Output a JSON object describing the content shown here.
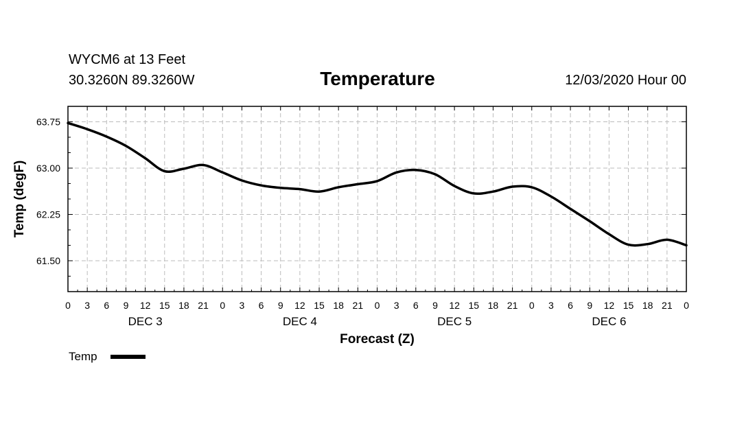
{
  "header": {
    "station": "WYCM6 at 13 Feet",
    "coordinates": "30.3260N 89.3260W",
    "title": "Temperature",
    "datetime": "12/03/2020 Hour 00"
  },
  "colors": {
    "line": "#000000",
    "grid": "#bbbbbb",
    "frame": "#000000"
  },
  "chart_data": {
    "type": "line",
    "title": "Temperature",
    "xlabel": "Forecast (Z)",
    "ylabel": "Temp (degF)",
    "xlim": [
      0,
      96
    ],
    "ylim": [
      61.0,
      64.0
    ],
    "yticks": [
      61.5,
      62.25,
      63.0,
      63.75
    ],
    "ytick_labels": [
      "61.50",
      "62.25",
      "63.00",
      "63.75"
    ],
    "xtick_hours": [
      0,
      3,
      6,
      9,
      12,
      15,
      18,
      21,
      24,
      27,
      30,
      33,
      36,
      39,
      42,
      45,
      48,
      51,
      54,
      57,
      60,
      63,
      66,
      69,
      72,
      75,
      78,
      81,
      84,
      87,
      90,
      93,
      96
    ],
    "xtick_labels": [
      "0",
      "3",
      "6",
      "9",
      "12",
      "15",
      "18",
      "21",
      "0",
      "3",
      "6",
      "9",
      "12",
      "15",
      "18",
      "21",
      "0",
      "3",
      "6",
      "9",
      "12",
      "15",
      "18",
      "21",
      "0",
      "3",
      "6",
      "9",
      "12",
      "15",
      "18",
      "21",
      "0"
    ],
    "day_labels": [
      {
        "label": "DEC 3",
        "hour": 12
      },
      {
        "label": "DEC 4",
        "hour": 36
      },
      {
        "label": "DEC 5",
        "hour": 60
      },
      {
        "label": "DEC 6",
        "hour": 84
      }
    ],
    "grid": true,
    "legend": {
      "entries": [
        "Temp"
      ],
      "placement": "bottom-left"
    },
    "series": [
      {
        "name": "Temp",
        "x": [
          0,
          3,
          6,
          9,
          12,
          15,
          18,
          21,
          24,
          27,
          30,
          33,
          36,
          39,
          42,
          45,
          48,
          51,
          54,
          57,
          60,
          63,
          66,
          69,
          72,
          75,
          78,
          81,
          84,
          87,
          90,
          93,
          96
        ],
        "values": [
          63.73,
          63.63,
          63.51,
          63.36,
          63.16,
          62.95,
          62.99,
          63.05,
          62.93,
          62.8,
          62.72,
          62.68,
          62.66,
          62.62,
          62.69,
          62.74,
          62.79,
          62.93,
          62.97,
          62.9,
          62.71,
          62.59,
          62.62,
          62.7,
          62.69,
          62.54,
          62.34,
          62.14,
          61.93,
          61.76,
          61.77,
          61.84,
          61.75
        ]
      }
    ]
  }
}
